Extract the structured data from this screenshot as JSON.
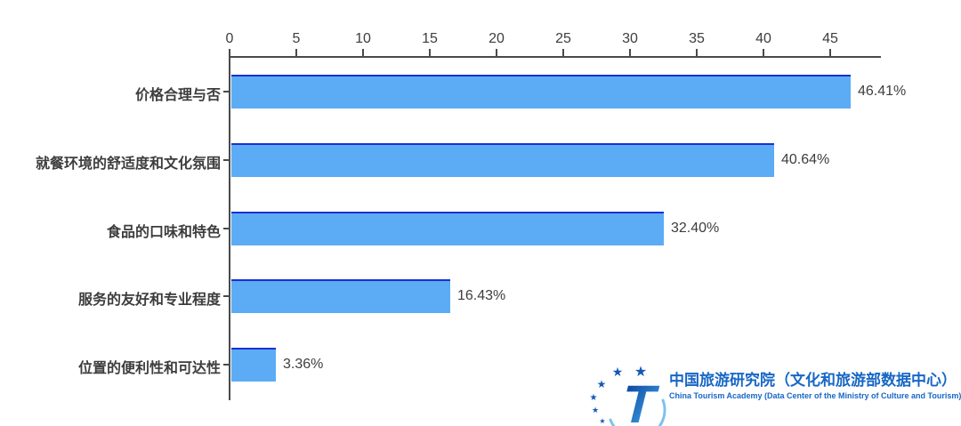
{
  "chart_data": {
    "type": "bar",
    "orientation": "horizontal",
    "title": "",
    "categories": [
      "价格合理与否",
      "就餐环境的舒适度和文化氛围",
      "食品的口味和特色",
      "服务的友好和专业程度",
      "位置的便利性和可达性"
    ],
    "values": [
      46.41,
      40.64,
      32.4,
      16.43,
      3.36
    ],
    "value_labels": [
      "46.41%",
      "40.64%",
      "32.40%",
      "16.43%",
      "3.36%"
    ],
    "x_ticks": [
      0,
      5,
      10,
      15,
      20,
      25,
      30,
      35,
      40,
      45
    ],
    "xlim": [
      0,
      48.8
    ],
    "axis_position": "top",
    "grid": false,
    "legend": false,
    "bar_color": "#5BACF5",
    "bar_edge_color": "#1B2FD6",
    "axis_color": "#4A4A4A",
    "label_color": "#3D3D3D"
  },
  "footer_logo": {
    "title_cn": "中国旅游研究院（文化和旅游部数据中心）",
    "title_en": "China Tourism Academy (Data Center of the Ministry of Culture and Tourism)",
    "brand_color": "#1767C5",
    "logo_letter": "T",
    "star_glyph": "★"
  }
}
